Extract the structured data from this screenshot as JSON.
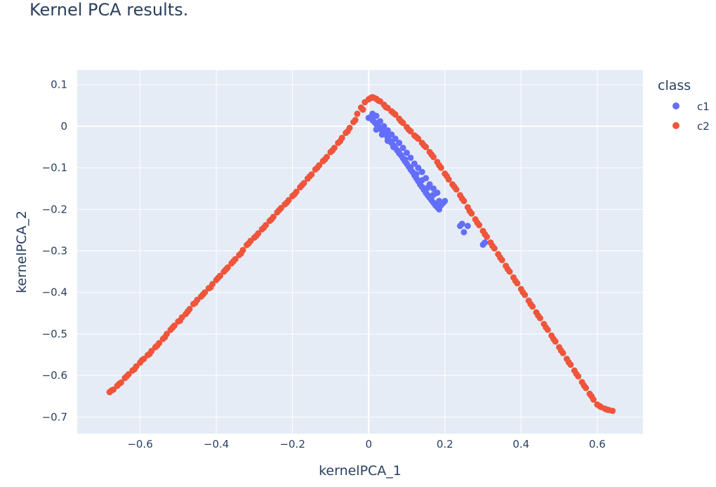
{
  "chart_data": {
    "type": "scatter",
    "title": "Kernel PCA results.",
    "xlabel": "kernelPCA_1",
    "ylabel": "kernelPCA_2",
    "xlim": [
      -0.765,
      0.72
    ],
    "ylim": [
      -0.74,
      0.135
    ],
    "xticks": [
      -0.6,
      -0.4,
      -0.2,
      0,
      0.2,
      0.4,
      0.6
    ],
    "xtick_labels": [
      "−0.6",
      "−0.4",
      "−0.2",
      "0",
      "0.2",
      "0.4",
      "0.6"
    ],
    "yticks": [
      0.1,
      0,
      -0.1,
      -0.2,
      -0.3,
      -0.4,
      -0.5,
      -0.6,
      -0.7
    ],
    "ytick_labels": [
      "0.1",
      "0",
      "−0.1",
      "−0.2",
      "−0.3",
      "−0.4",
      "−0.5",
      "−0.6",
      "−0.7"
    ],
    "grid": true,
    "legend": {
      "title": "class",
      "placement": "right"
    },
    "series": [
      {
        "name": "c1",
        "color": "#636efa",
        "x": [
          0.0,
          0.005,
          0.01,
          0.015,
          0.02,
          0.025,
          0.03,
          0.035,
          0.04,
          0.045,
          0.05,
          0.055,
          0.06,
          0.065,
          0.07,
          0.075,
          0.08,
          0.085,
          0.09,
          0.095,
          0.1,
          0.105,
          0.11,
          0.115,
          0.12,
          0.125,
          0.13,
          0.135,
          0.14,
          0.145,
          0.15,
          0.155,
          0.16,
          0.165,
          0.17,
          0.175,
          0.18,
          0.185,
          0.19,
          0.195,
          0.2,
          0.01,
          0.02,
          0.03,
          0.04,
          0.05,
          0.06,
          0.07,
          0.08,
          0.09,
          0.1,
          0.11,
          0.12,
          0.13,
          0.14,
          0.15,
          0.16,
          0.17,
          0.18,
          0.02,
          0.035,
          0.05,
          0.065,
          0.08,
          0.095,
          0.11,
          0.125,
          0.14,
          0.155,
          0.17,
          0.185,
          0.24,
          0.245,
          0.25,
          0.26,
          0.3,
          0.305
        ],
        "y": [
          0.02,
          0.022,
          0.015,
          0.01,
          0.005,
          0.0,
          -0.005,
          -0.01,
          -0.015,
          -0.02,
          -0.028,
          -0.035,
          -0.04,
          -0.046,
          -0.052,
          -0.058,
          -0.064,
          -0.07,
          -0.077,
          -0.084,
          -0.09,
          -0.097,
          -0.104,
          -0.11,
          -0.118,
          -0.125,
          -0.132,
          -0.14,
          -0.146,
          -0.153,
          -0.16,
          -0.166,
          -0.172,
          -0.178,
          -0.184,
          -0.19,
          -0.195,
          -0.2,
          -0.19,
          -0.185,
          -0.18,
          0.03,
          0.025,
          0.012,
          0.0,
          -0.01,
          -0.02,
          -0.03,
          -0.04,
          -0.052,
          -0.064,
          -0.076,
          -0.09,
          -0.1,
          -0.11,
          -0.125,
          -0.14,
          -0.15,
          -0.16,
          -0.008,
          -0.02,
          -0.035,
          -0.05,
          -0.065,
          -0.08,
          -0.1,
          -0.115,
          -0.13,
          -0.148,
          -0.165,
          -0.18,
          -0.24,
          -0.235,
          -0.255,
          -0.24,
          -0.285,
          -0.28
        ]
      },
      {
        "name": "c2",
        "color": "#ef553b",
        "x": [
          -0.68,
          -0.67,
          -0.66,
          -0.65,
          -0.64,
          -0.63,
          -0.62,
          -0.61,
          -0.6,
          -0.59,
          -0.58,
          -0.57,
          -0.56,
          -0.55,
          -0.54,
          -0.53,
          -0.52,
          -0.51,
          -0.5,
          -0.49,
          -0.48,
          -0.47,
          -0.46,
          -0.45,
          -0.44,
          -0.43,
          -0.42,
          -0.41,
          -0.4,
          -0.39,
          -0.38,
          -0.37,
          -0.36,
          -0.35,
          -0.34,
          -0.33,
          -0.32,
          -0.31,
          -0.3,
          -0.29,
          -0.28,
          -0.27,
          -0.26,
          -0.25,
          -0.24,
          -0.23,
          -0.22,
          -0.21,
          -0.2,
          -0.19,
          -0.18,
          -0.17,
          -0.16,
          -0.15,
          -0.14,
          -0.13,
          -0.12,
          -0.11,
          -0.1,
          -0.09,
          -0.08,
          -0.07,
          -0.06,
          -0.05,
          -0.04,
          -0.03,
          -0.02,
          -0.01,
          0.0,
          0.005,
          0.01,
          0.015,
          0.02,
          0.03,
          0.04,
          0.05,
          0.06,
          0.07,
          0.08,
          0.09,
          0.1,
          0.11,
          0.12,
          0.13,
          0.14,
          0.15,
          0.16,
          0.17,
          0.18,
          0.19,
          0.2,
          0.21,
          0.22,
          0.23,
          0.24,
          0.25,
          0.26,
          0.27,
          0.28,
          0.29,
          0.3,
          0.31,
          0.32,
          0.33,
          0.34,
          0.35,
          0.36,
          0.37,
          0.38,
          0.39,
          0.4,
          0.41,
          0.42,
          0.43,
          0.44,
          0.45,
          0.46,
          0.47,
          0.48,
          0.49,
          0.5,
          0.51,
          0.52,
          0.53,
          0.54,
          0.55,
          0.56,
          0.57,
          0.58,
          0.59,
          0.6,
          0.61,
          0.62,
          0.63,
          0.64,
          -0.675,
          -0.655,
          -0.635,
          -0.615,
          -0.595,
          -0.575,
          -0.555,
          -0.535,
          -0.515,
          -0.495,
          -0.475,
          -0.455,
          -0.435,
          -0.415,
          -0.395,
          -0.375,
          -0.355,
          -0.335,
          -0.315,
          -0.295,
          -0.275,
          -0.255,
          -0.235,
          -0.215,
          -0.195,
          -0.175,
          -0.155,
          -0.135,
          -0.115,
          -0.095,
          -0.075,
          -0.055,
          -0.035,
          -0.015,
          0.025,
          0.045,
          0.065,
          0.085,
          0.105,
          0.125,
          0.145,
          0.165,
          0.185,
          0.205,
          0.225,
          0.245,
          0.265,
          0.285,
          0.305,
          0.325,
          0.345,
          0.365,
          0.385,
          0.405,
          0.425,
          0.445,
          0.465,
          0.485,
          0.505,
          0.525,
          0.545,
          0.565,
          0.585,
          0.605,
          0.625
        ],
        "y": [
          -0.64,
          -0.634,
          -0.625,
          -0.617,
          -0.606,
          -0.597,
          -0.588,
          -0.578,
          -0.569,
          -0.56,
          -0.551,
          -0.541,
          -0.532,
          -0.522,
          -0.512,
          -0.5,
          -0.49,
          -0.48,
          -0.47,
          -0.46,
          -0.452,
          -0.44,
          -0.428,
          -0.418,
          -0.41,
          -0.4,
          -0.39,
          -0.38,
          -0.37,
          -0.36,
          -0.35,
          -0.34,
          -0.33,
          -0.32,
          -0.31,
          -0.298,
          -0.286,
          -0.276,
          -0.268,
          -0.258,
          -0.248,
          -0.238,
          -0.228,
          -0.218,
          -0.207,
          -0.197,
          -0.188,
          -0.178,
          -0.168,
          -0.158,
          -0.147,
          -0.137,
          -0.126,
          -0.116,
          -0.104,
          -0.094,
          -0.084,
          -0.074,
          -0.062,
          -0.052,
          -0.04,
          -0.028,
          -0.016,
          -0.004,
          0.01,
          0.03,
          0.045,
          0.058,
          0.065,
          0.068,
          0.07,
          0.068,
          0.066,
          0.06,
          0.052,
          0.044,
          0.036,
          0.028,
          0.018,
          0.008,
          -0.002,
          -0.012,
          -0.022,
          -0.03,
          -0.04,
          -0.05,
          -0.062,
          -0.074,
          -0.086,
          -0.1,
          -0.114,
          -0.128,
          -0.14,
          -0.152,
          -0.166,
          -0.18,
          -0.195,
          -0.21,
          -0.224,
          -0.238,
          -0.252,
          -0.266,
          -0.28,
          -0.294,
          -0.308,
          -0.322,
          -0.336,
          -0.35,
          -0.364,
          -0.378,
          -0.392,
          -0.406,
          -0.42,
          -0.434,
          -0.448,
          -0.462,
          -0.476,
          -0.49,
          -0.504,
          -0.518,
          -0.532,
          -0.546,
          -0.56,
          -0.574,
          -0.588,
          -0.602,
          -0.616,
          -0.63,
          -0.644,
          -0.658,
          -0.67,
          -0.676,
          -0.68,
          -0.683,
          -0.685,
          -0.636,
          -0.62,
          -0.602,
          -0.585,
          -0.563,
          -0.548,
          -0.528,
          -0.508,
          -0.485,
          -0.468,
          -0.446,
          -0.425,
          -0.405,
          -0.388,
          -0.365,
          -0.345,
          -0.325,
          -0.306,
          -0.282,
          -0.264,
          -0.244,
          -0.224,
          -0.202,
          -0.184,
          -0.164,
          -0.142,
          -0.121,
          -0.1,
          -0.08,
          -0.058,
          -0.036,
          -0.012,
          0.015,
          0.04,
          0.062,
          0.046,
          0.032,
          0.012,
          -0.008,
          -0.026,
          -0.046,
          -0.068,
          -0.094,
          -0.12,
          -0.146,
          -0.174,
          -0.204,
          -0.232,
          -0.26,
          -0.288,
          -0.316,
          -0.344,
          -0.372,
          -0.4,
          -0.428,
          -0.456,
          -0.484,
          -0.512,
          -0.54,
          -0.568,
          -0.596,
          -0.624,
          -0.65,
          -0.673,
          -0.682
        ]
      }
    ]
  }
}
